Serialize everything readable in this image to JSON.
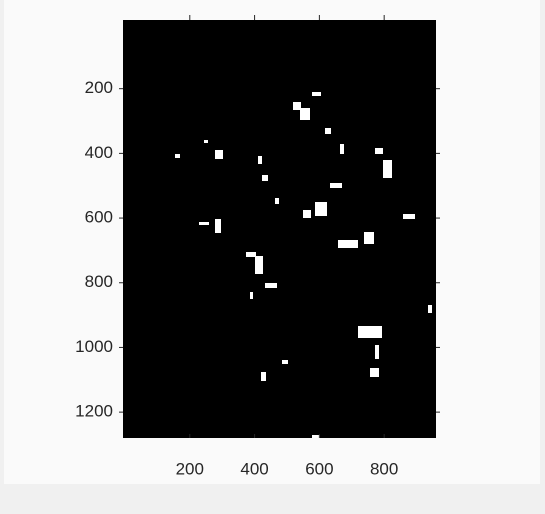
{
  "chart_data": {
    "type": "image",
    "xlim": [
      0,
      960
    ],
    "ylim": [
      0,
      1280
    ],
    "xticks": [
      200,
      400,
      600,
      800
    ],
    "yticks": [
      200,
      400,
      600,
      800,
      1000,
      1200
    ],
    "y_reversed": true,
    "background": "#000000",
    "foreground": "#ffffff"
  }
}
